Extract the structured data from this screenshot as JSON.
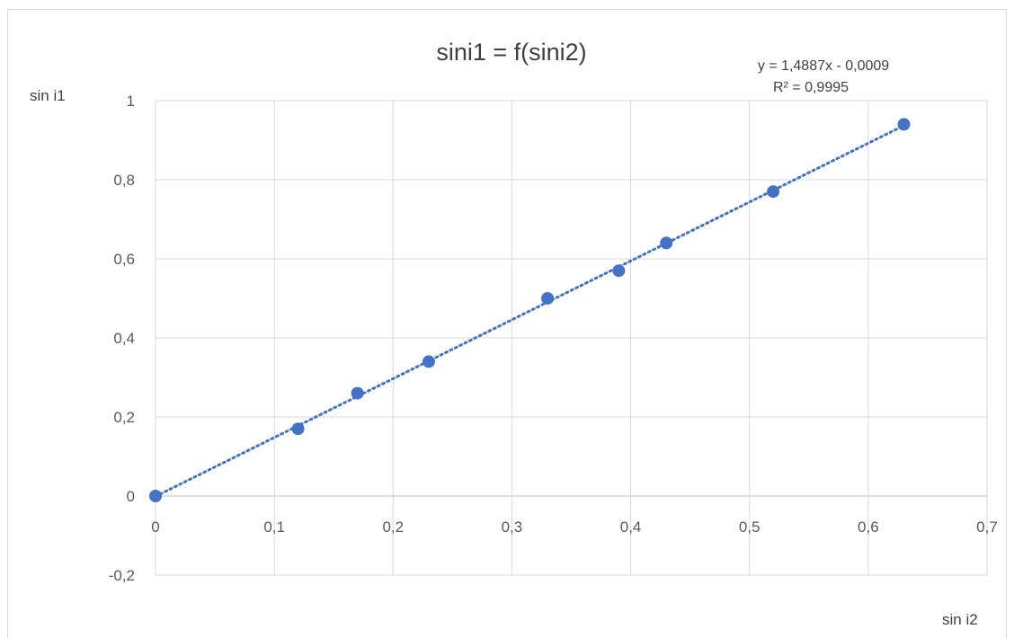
{
  "chart_data": {
    "type": "scatter",
    "title": "sini1 = f(sini2)",
    "xlabel": "sin i2",
    "ylabel": "sin i1",
    "xlim": [
      0,
      0.7
    ],
    "ylim": [
      -0.2,
      1
    ],
    "x_ticks": [
      0,
      0.1,
      0.2,
      0.3,
      0.4,
      0.5,
      0.6,
      0.7
    ],
    "x_tick_labels": [
      "0",
      "0,1",
      "0,2",
      "0,3",
      "0,4",
      "0,5",
      "0,6",
      "0,7"
    ],
    "y_ticks": [
      -0.2,
      0,
      0.2,
      0.4,
      0.6,
      0.8,
      1
    ],
    "y_tick_labels": [
      "-0,2",
      "0",
      "0,2",
      "0,4",
      "0,6",
      "0,8",
      "1"
    ],
    "grid": true,
    "legend": "none",
    "series": [
      {
        "x": [
          0,
          0.12,
          0.17,
          0.23,
          0.33,
          0.39,
          0.43,
          0.52,
          0.63
        ],
        "y": [
          0,
          0.17,
          0.26,
          0.34,
          0.5,
          0.57,
          0.64,
          0.77,
          0.94
        ],
        "color": "#4472c4"
      }
    ],
    "trendline": {
      "type": "linear",
      "slope": 1.4887,
      "intercept": -0.0009,
      "style": "dotted",
      "color": "#4472c4",
      "equation_label": "y = 1,4887x - 0,0009",
      "r2_label": "R² = 0,9995"
    }
  }
}
